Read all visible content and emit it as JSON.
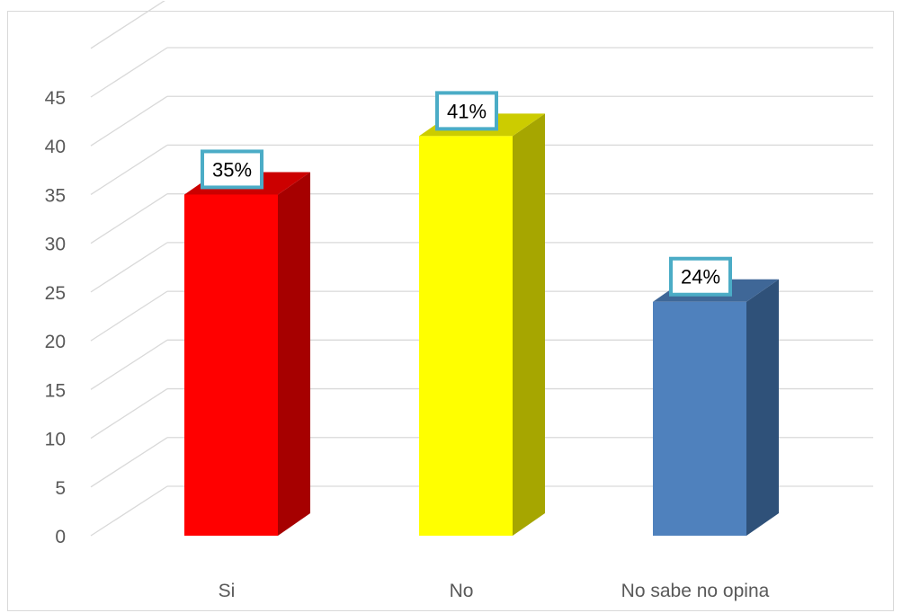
{
  "chart_data": {
    "type": "bar",
    "style": "3d-column",
    "categories": [
      "Si",
      "No",
      "No sabe no opina"
    ],
    "values": [
      35,
      41,
      24
    ],
    "data_labels": [
      "35%",
      "41%",
      "24%"
    ],
    "colors": [
      "#ff0000",
      "#ffff00",
      "#4f81bd"
    ],
    "side_colors": [
      "#a60000",
      "#a6a600",
      "#2f5179"
    ],
    "top_colors": [
      "#cc0000",
      "#cccc00",
      "#3f6797"
    ],
    "label_border_color": "#4bacc6",
    "ylim": [
      0,
      45
    ],
    "yticks": [
      "0",
      "5",
      "10",
      "15",
      "20",
      "25",
      "30",
      "35",
      "40",
      "45"
    ],
    "grid": true,
    "gridline_color": "#d9d9d9"
  }
}
